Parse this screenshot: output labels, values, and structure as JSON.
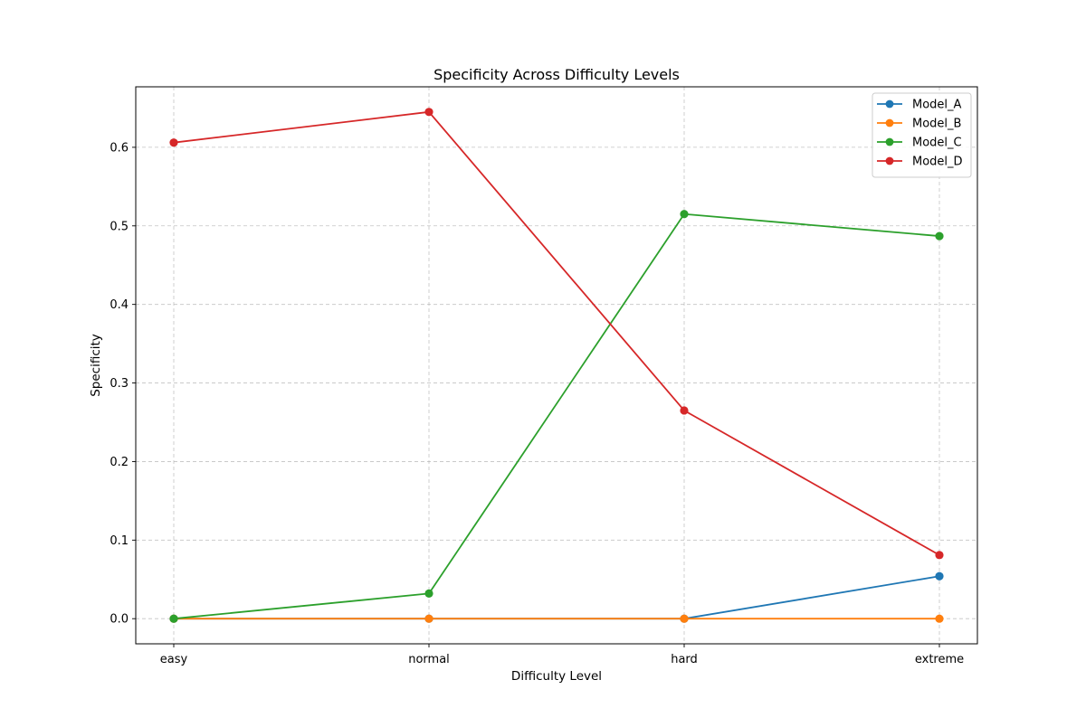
{
  "chart_data": {
    "type": "line",
    "title": "Specificity Across Difficulty Levels",
    "xlabel": "Difficulty Level",
    "ylabel": "Specificity",
    "categories": [
      "easy",
      "normal",
      "hard",
      "extreme"
    ],
    "ylim": [
      -0.032,
      0.677
    ],
    "yticks": [
      0.0,
      0.1,
      0.2,
      0.3,
      0.4,
      0.5,
      0.6
    ],
    "ytick_labels": [
      "0.0",
      "0.1",
      "0.2",
      "0.3",
      "0.4",
      "0.5",
      "0.6"
    ],
    "grid": true,
    "legend_position": "top-right",
    "series": [
      {
        "name": "Model_A",
        "color": "#1f77b4",
        "values": [
          0.0,
          0.0,
          0.0,
          0.054
        ]
      },
      {
        "name": "Model_B",
        "color": "#ff7f0e",
        "values": [
          0.0,
          0.0,
          0.0,
          0.0
        ]
      },
      {
        "name": "Model_C",
        "color": "#2ca02c",
        "values": [
          0.0,
          0.032,
          0.515,
          0.487
        ]
      },
      {
        "name": "Model_D",
        "color": "#d62728",
        "values": [
          0.606,
          0.645,
          0.265,
          0.081
        ]
      }
    ]
  }
}
